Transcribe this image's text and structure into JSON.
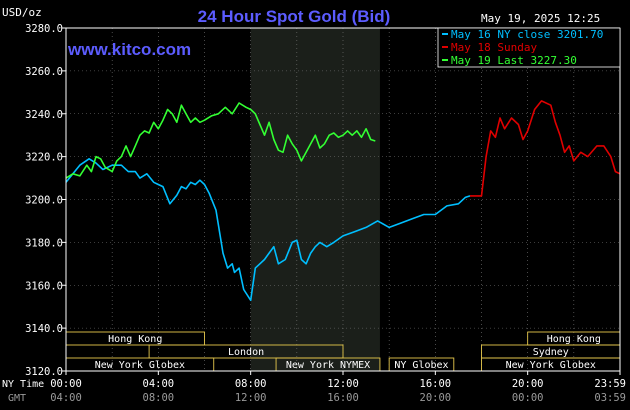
{
  "header": {
    "units": "USD/oz",
    "title": "24 Hour Spot Gold (Bid)",
    "date": "May 19, 2025 12:25",
    "site": "www.kitco.com"
  },
  "legend": [
    {
      "text": "May 16 NY close 3201.70",
      "color": "#00BFFF"
    },
    {
      "text": "May 18 Sunday",
      "color": "#E00000"
    },
    {
      "text": "May 19 Last 3227.30",
      "color": "#33FF33"
    }
  ],
  "colors": {
    "background": "#000000",
    "axis": "#FFFFFF",
    "grid": "#7A7A7A",
    "title": "#5C5CFF",
    "site": "#5C5CFF",
    "shade": "#1B1F1A",
    "market_box": "#E6C84D",
    "hour_nytime": "#FFFFFF",
    "hour_gmt": "#9A9A9A"
  },
  "chart_data": {
    "type": "line",
    "title": "24 Hour Spot Gold (Bid)",
    "ylabel": "USD/oz",
    "ylim": [
      3120,
      3280
    ],
    "yticks": [
      "3280.0",
      "3260.0",
      "3240.0",
      "3220.0",
      "3200.0",
      "3180.0",
      "3160.0",
      "3140.0",
      "3120.0"
    ],
    "xlim": [
      0,
      24
    ],
    "x_row_labels": {
      "nytime": "NY Time",
      "gmt": "GMT"
    },
    "xticks_nytime": [
      "00:00",
      "04:00",
      "08:00",
      "12:00",
      "16:00",
      "20:00",
      "23:59"
    ],
    "xticks_gmt": [
      "04:00",
      "08:00",
      "12:00",
      "16:00",
      "20:00",
      "00:00",
      "03:59"
    ],
    "grid": true,
    "legend_position": "top-right",
    "shaded_region": [
      8.0,
      13.6
    ],
    "series": [
      {
        "name": "May 16 NY close 3201.70",
        "color": "#00BFFF",
        "x": [
          0,
          0.3,
          0.6,
          1.0,
          1.3,
          1.6,
          2.0,
          2.4,
          2.7,
          3.0,
          3.2,
          3.5,
          3.8,
          4.0,
          4.2,
          4.5,
          4.8,
          5.0,
          5.2,
          5.4,
          5.6,
          5.8,
          6.0,
          6.2,
          6.5,
          6.8,
          7.0,
          7.2,
          7.3,
          7.5,
          7.7,
          8.0,
          8.2,
          8.4,
          8.6,
          8.8,
          9.0,
          9.2,
          9.5,
          9.8,
          10.0,
          10.2,
          10.4,
          10.6,
          10.8,
          11.0,
          11.3,
          11.6,
          12.0,
          12.5,
          13.0,
          13.5,
          14.0,
          14.5,
          15.0,
          15.5,
          16.0,
          16.5,
          17.0,
          17.3,
          17.5
        ],
        "y": [
          3208,
          3212,
          3216,
          3219,
          3217,
          3214,
          3216,
          3216,
          3213,
          3213,
          3210,
          3212,
          3208,
          3207,
          3206,
          3198,
          3202,
          3206,
          3205,
          3208,
          3207,
          3209,
          3207,
          3203,
          3195,
          3175,
          3168,
          3170,
          3166,
          3168,
          3158,
          3153,
          3168,
          3170,
          3172,
          3175,
          3178,
          3170,
          3172,
          3180,
          3181,
          3172,
          3170,
          3175,
          3178,
          3180,
          3178,
          3180,
          3183,
          3185,
          3187,
          3190,
          3187,
          3189,
          3191,
          3193,
          3193,
          3197,
          3198,
          3201,
          3201.7
        ]
      },
      {
        "name": "May 18 Sunday",
        "color": "#E00000",
        "x": [
          17.5,
          18.0,
          18.2,
          18.4,
          18.6,
          18.8,
          19.0,
          19.3,
          19.6,
          19.8,
          20.0,
          20.3,
          20.6,
          21.0,
          21.2,
          21.4,
          21.6,
          21.8,
          22.0,
          22.3,
          22.6,
          23.0,
          23.3,
          23.6,
          23.8,
          24.0
        ],
        "y": [
          3201.7,
          3201.7,
          3220,
          3232,
          3229,
          3238,
          3233,
          3238,
          3235,
          3228,
          3232,
          3242,
          3246,
          3244,
          3236,
          3230,
          3222,
          3225,
          3218,
          3222,
          3220,
          3225,
          3225,
          3220,
          3213,
          3212
        ]
      },
      {
        "name": "May 19 Last 3227.30",
        "color": "#33FF33",
        "x": [
          0,
          0.3,
          0.6,
          0.9,
          1.1,
          1.3,
          1.5,
          1.7,
          2.0,
          2.2,
          2.4,
          2.6,
          2.8,
          3.0,
          3.2,
          3.4,
          3.6,
          3.8,
          4.0,
          4.2,
          4.4,
          4.6,
          4.8,
          5.0,
          5.2,
          5.4,
          5.6,
          5.8,
          6.0,
          6.3,
          6.6,
          6.9,
          7.2,
          7.5,
          7.8,
          8.0,
          8.2,
          8.4,
          8.6,
          8.8,
          9.0,
          9.2,
          9.4,
          9.6,
          9.8,
          10.0,
          10.2,
          10.4,
          10.6,
          10.8,
          11.0,
          11.2,
          11.4,
          11.6,
          11.8,
          12.0,
          12.2,
          12.4,
          12.6,
          12.8,
          13.0,
          13.2,
          13.4
        ],
        "y": [
          3210,
          3212,
          3211,
          3216,
          3213,
          3220,
          3219,
          3215,
          3213,
          3218,
          3220,
          3225,
          3220,
          3225,
          3230,
          3232,
          3231,
          3236,
          3233,
          3237,
          3242,
          3240,
          3236,
          3244,
          3240,
          3236,
          3238,
          3236,
          3237,
          3239,
          3240,
          3243,
          3240,
          3245,
          3243,
          3242,
          3240,
          3235,
          3230,
          3236,
          3228,
          3223,
          3222,
          3230,
          3226,
          3223,
          3218,
          3222,
          3226,
          3230,
          3224,
          3226,
          3230,
          3231,
          3229,
          3230,
          3232,
          3230,
          3232,
          3229,
          3233,
          3228,
          3227.3
        ]
      }
    ],
    "market_sessions": [
      {
        "label": "Hong Kong",
        "start": 0.0,
        "end": 6.0,
        "row": 0
      },
      {
        "label": "London",
        "start": 3.6,
        "end": 12.0,
        "row": 1
      },
      {
        "label": "New York Globex",
        "start": 0.0,
        "end": 6.4,
        "row": 2
      },
      {
        "label": "New York NYMEX",
        "start": 9.1,
        "end": 13.6,
        "row": 2
      },
      {
        "label": "NY Globex",
        "start": 14.0,
        "end": 16.8,
        "row": 2
      },
      {
        "label": "Hong Kong",
        "start": 20.0,
        "end": 24.0,
        "row": 0
      },
      {
        "label": "Sydney",
        "start": 18.0,
        "end": 24.0,
        "row": 1
      },
      {
        "label": "New York Globex",
        "start": 18.0,
        "end": 24.0,
        "row": 2
      }
    ]
  }
}
